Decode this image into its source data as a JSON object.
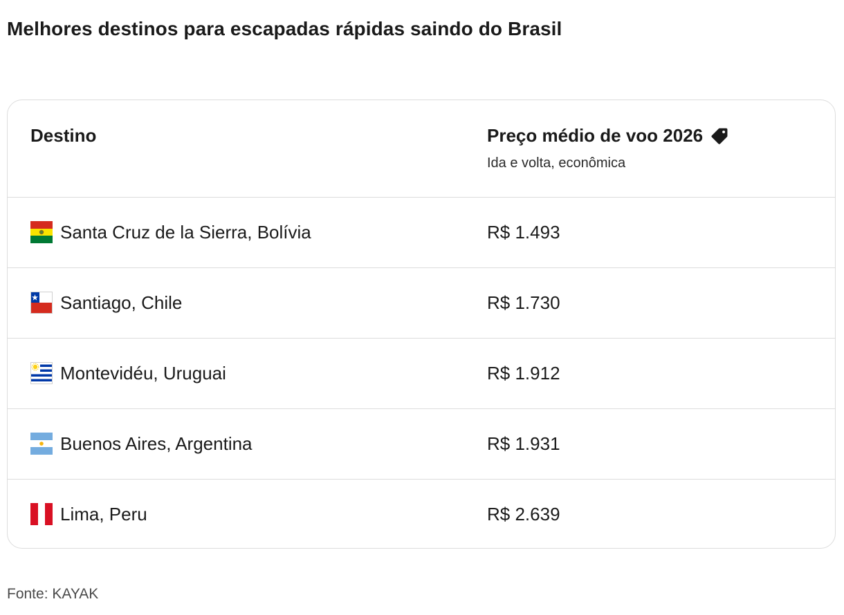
{
  "title": "Melhores destinos para escapadas rápidas saindo do Brasil",
  "table": {
    "header": {
      "destination": "Destino",
      "price": "Preço médio de voo 2026",
      "price_icon": "price-tag-icon",
      "price_sub": "Ida e volta, econômica"
    },
    "rows": [
      {
        "flag": "bolivia-flag-icon",
        "destination": "Santa Cruz de la Sierra, Bolívia",
        "price": "R$ 1.493"
      },
      {
        "flag": "chile-flag-icon",
        "destination": "Santiago, Chile",
        "price": "R$ 1.730"
      },
      {
        "flag": "uruguay-flag-icon",
        "destination": "Montevidéu, Uruguai",
        "price": "R$ 1.912"
      },
      {
        "flag": "argentina-flag-icon",
        "destination": "Buenos Aires, Argentina",
        "price": "R$ 1.931"
      },
      {
        "flag": "peru-flag-icon",
        "destination": "Lima, Peru",
        "price": "R$ 2.639"
      }
    ]
  },
  "source": "Fonte: KAYAK",
  "colors": {
    "border": "#dcdcdc",
    "text": "#1a1a1a"
  }
}
